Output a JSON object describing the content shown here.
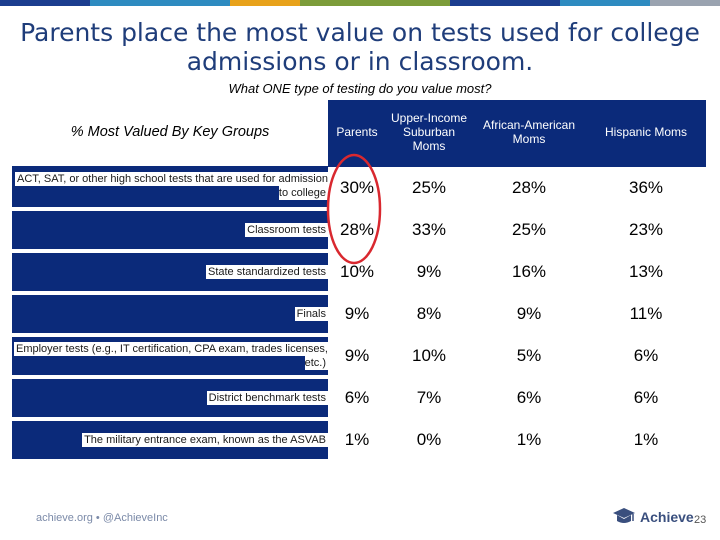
{
  "title": "Parents place the most value on tests used for college admissions or in classroom.",
  "subtitle": "What ONE type of testing do you value most?",
  "groups_label": "% Most Valued By Key Groups",
  "colors": {
    "header_bg": "#0b2a7a",
    "title": "#1f3d7a",
    "highlight_circle": "#d9282f",
    "bar_segments": [
      "#1b3d8f",
      "#2e8bc0",
      "#e8a21a",
      "#7c9c3a",
      "#1b3d8f",
      "#2e8bc0",
      "#9aa3b0"
    ]
  },
  "chart_data": {
    "type": "table",
    "columns": [
      "Parents",
      "Upper-Income Suburban Moms",
      "African-American Moms",
      "Hispanic Moms"
    ],
    "rows": [
      {
        "label": "ACT, SAT, or other high school tests that are used for admission to college",
        "values": [
          "30%",
          "25%",
          "28%",
          "36%"
        ]
      },
      {
        "label": "Classroom tests",
        "values": [
          "28%",
          "33%",
          "25%",
          "23%"
        ]
      },
      {
        "label": "State standardized tests",
        "values": [
          "10%",
          "9%",
          "16%",
          "13%"
        ]
      },
      {
        "label": "Finals",
        "values": [
          "9%",
          "8%",
          "9%",
          "11%"
        ]
      },
      {
        "label": "Employer tests (e.g., IT certification, CPA exam, trades licenses, etc.)",
        "values": [
          "9%",
          "10%",
          "5%",
          "6%"
        ]
      },
      {
        "label": "District benchmark tests",
        "values": [
          "6%",
          "7%",
          "6%",
          "6%"
        ]
      },
      {
        "label": "The military entrance exam, known as the ASVAB",
        "values": [
          "1%",
          "0%",
          "1%",
          "1%"
        ]
      }
    ],
    "highlight": {
      "column": "Parents",
      "rows": [
        "ACT, SAT, or other high school tests that are used for admission to college",
        "Classroom tests"
      ]
    }
  },
  "footer": {
    "left": "achieve.org • @AchieveInc",
    "logo_text": "Achieve",
    "page": "23"
  }
}
